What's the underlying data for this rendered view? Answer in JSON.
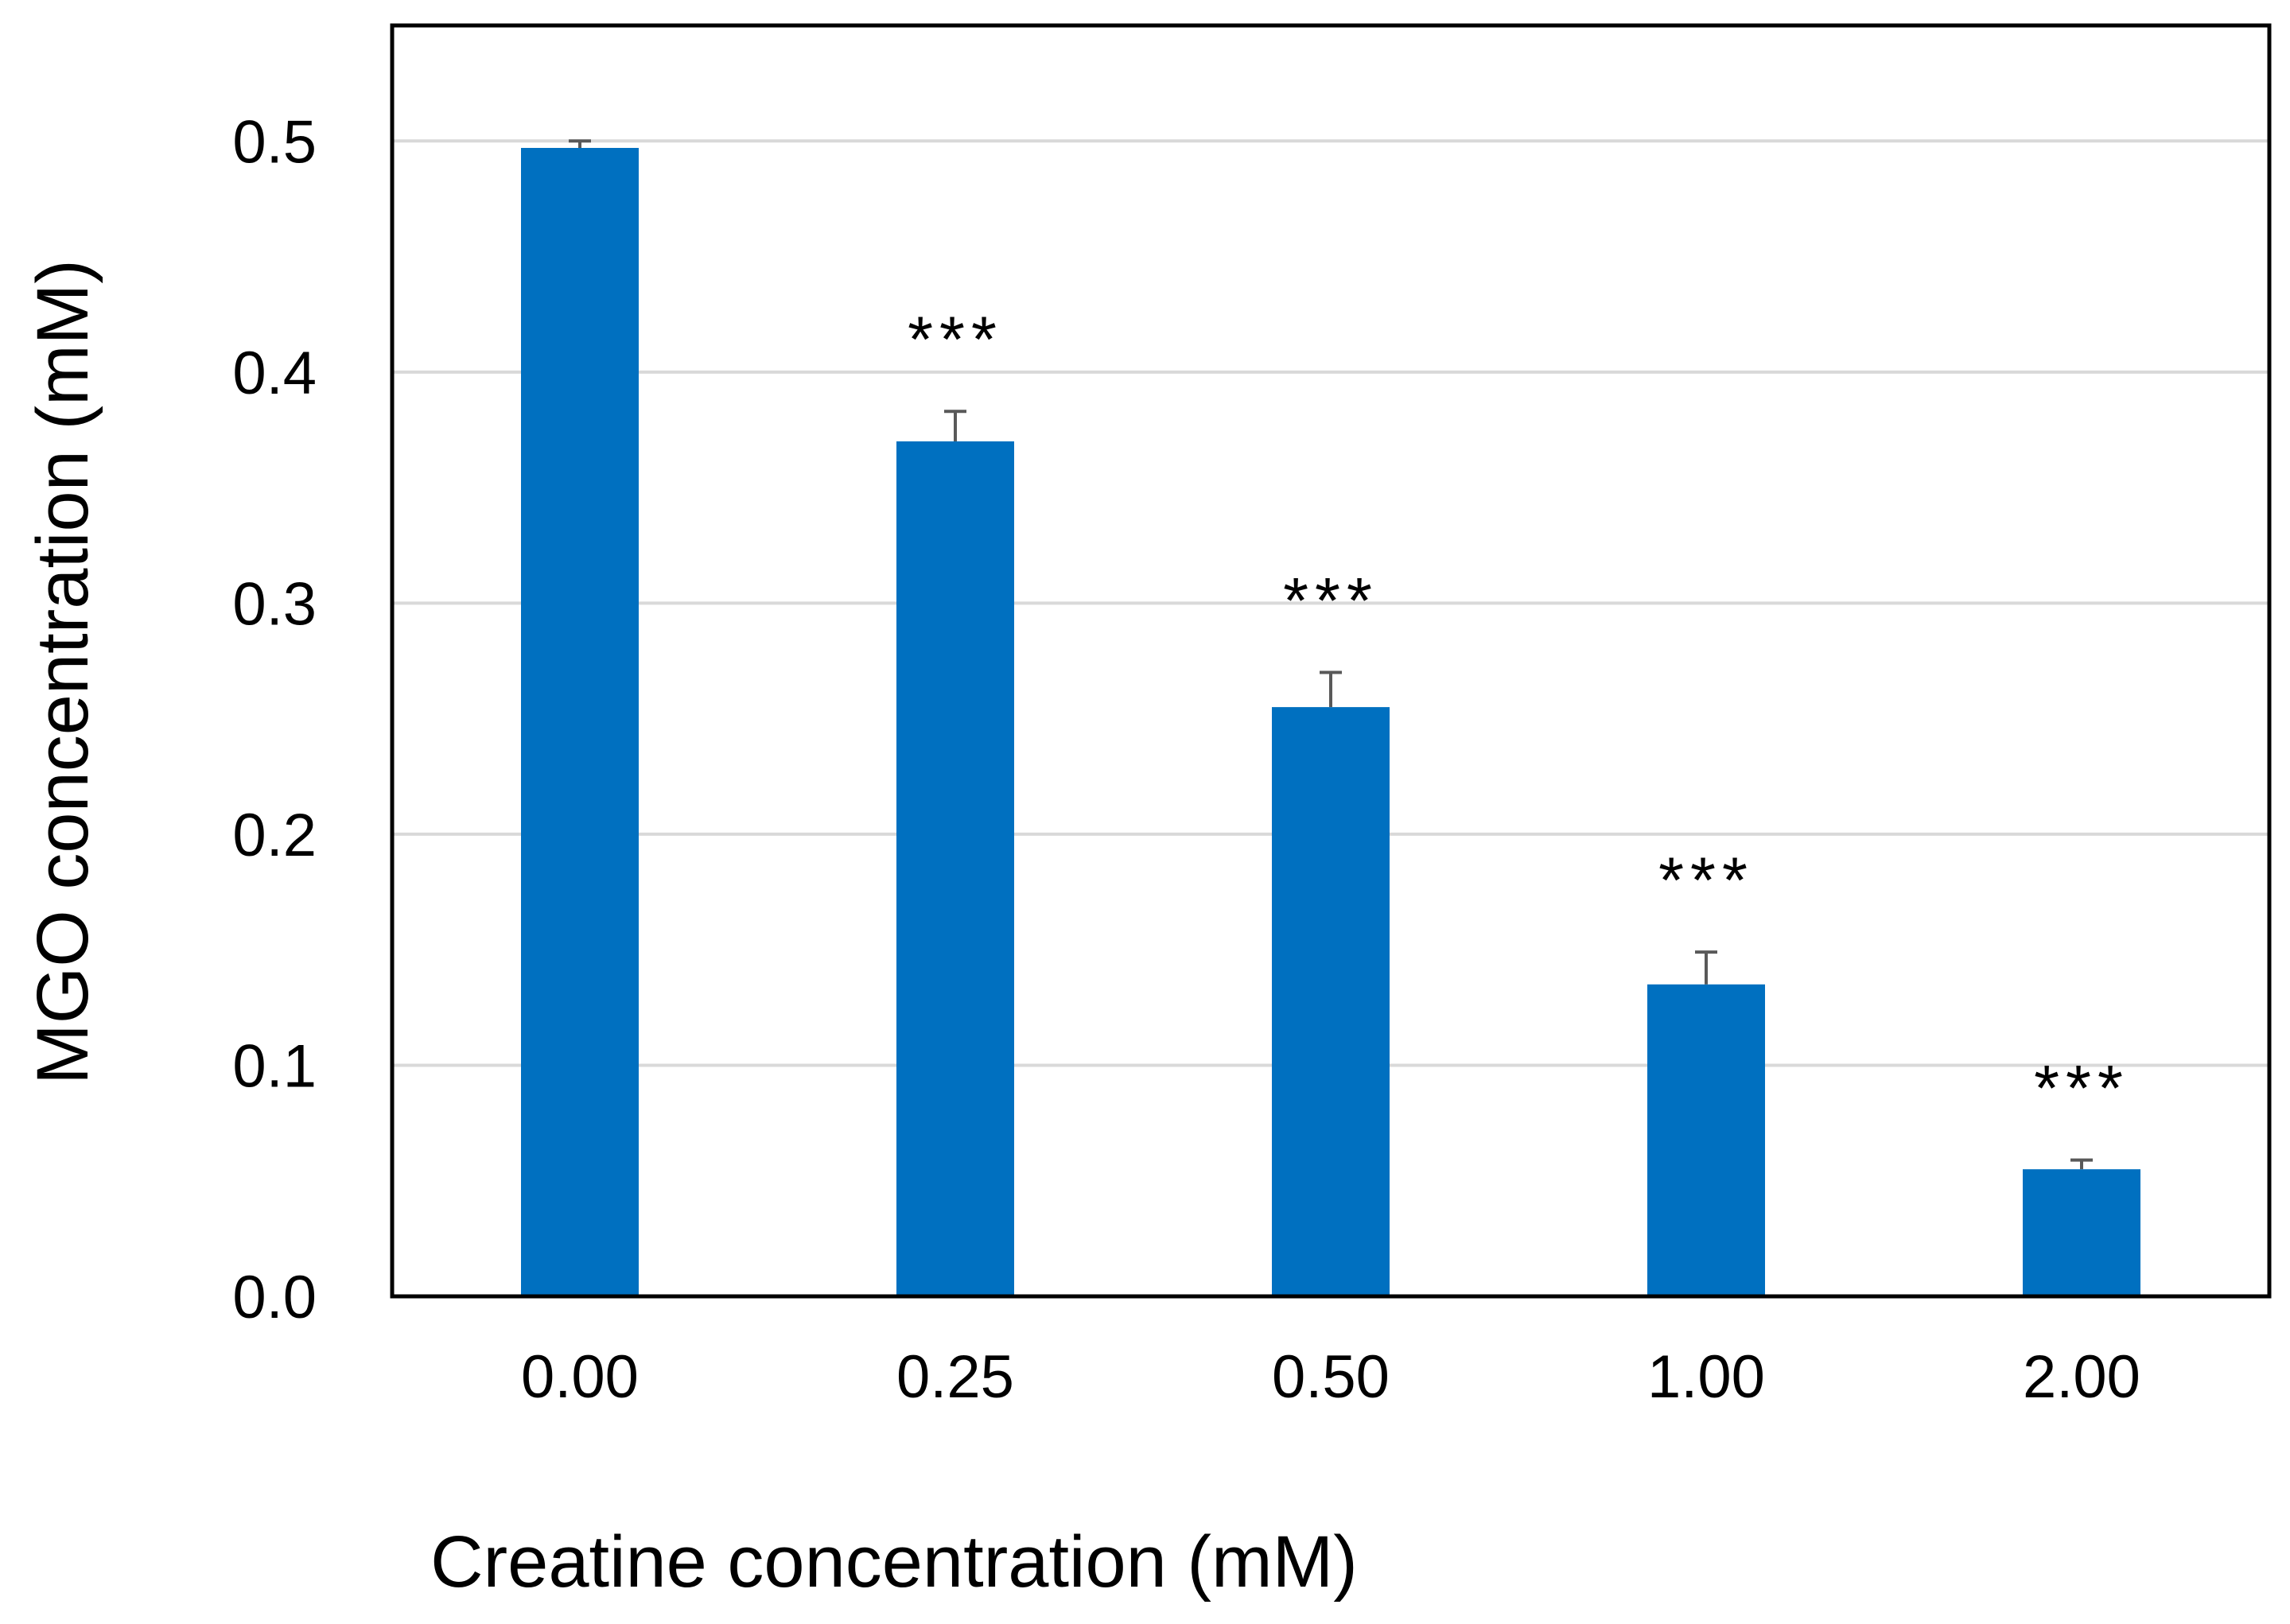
{
  "chart_data": {
    "type": "bar",
    "title": "",
    "xlabel": "Creatine concentration (mM)",
    "ylabel": "MGO concentration (mM)",
    "categories": [
      "0.00",
      "0.25",
      "0.50",
      "1.00",
      "2.00"
    ],
    "values": [
      0.497,
      0.37,
      0.255,
      0.135,
      0.055
    ],
    "errors": [
      0.003,
      0.013,
      0.015,
      0.014,
      0.004
    ],
    "significance": [
      "",
      "***",
      "***",
      "***",
      "***"
    ],
    "ylim": [
      0,
      0.55
    ],
    "yticks": [
      0.0,
      0.1,
      0.2,
      0.3,
      0.4,
      0.5
    ],
    "ytick_labels": [
      "0.0",
      "0.1",
      "0.2",
      "0.3",
      "0.4",
      "0.5"
    ],
    "grid": true,
    "legend": "none",
    "colors": {
      "bar": "#0070c0",
      "error_bar": "#595959",
      "grid": "#d9d9d9",
      "frame": "#000000"
    }
  }
}
